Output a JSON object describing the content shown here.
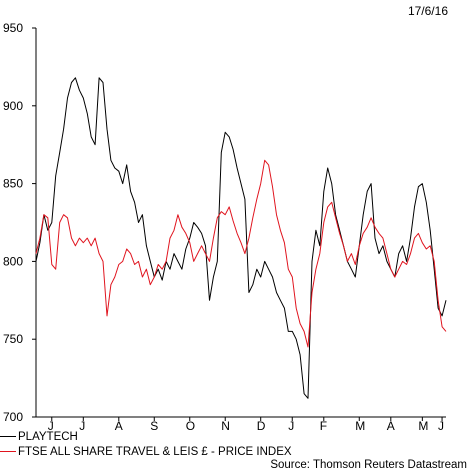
{
  "date_label": "17/6/16",
  "source": "Source: Thomson Reuters Datastream",
  "chart_data": {
    "type": "line",
    "ylim": [
      700,
      950
    ],
    "yticks": [
      700,
      750,
      800,
      850,
      900,
      950
    ],
    "xlim": [
      0,
      52
    ],
    "month_ticks": [
      {
        "label": "J",
        "x": 2
      },
      {
        "label": "J",
        "x": 6
      },
      {
        "label": "A",
        "x": 10.5
      },
      {
        "label": "S",
        "x": 15
      },
      {
        "label": "O",
        "x": 19.5
      },
      {
        "label": "N",
        "x": 24
      },
      {
        "label": "D",
        "x": 28.5
      },
      {
        "label": "J",
        "x": 32.5
      },
      {
        "label": "F",
        "x": 36.5
      },
      {
        "label": "M",
        "x": 41
      },
      {
        "label": "A",
        "x": 45
      },
      {
        "label": "M",
        "x": 49
      },
      {
        "label": "J",
        "x": 51.5
      }
    ],
    "series": [
      {
        "name": "PLAYTECH",
        "color": "#000000",
        "points": [
          [
            0,
            800
          ],
          [
            0.5,
            812
          ],
          [
            1,
            830
          ],
          [
            1.5,
            820
          ],
          [
            2,
            825
          ],
          [
            2.5,
            855
          ],
          [
            3,
            870
          ],
          [
            3.5,
            885
          ],
          [
            4,
            905
          ],
          [
            4.5,
            915
          ],
          [
            5,
            918
          ],
          [
            5.5,
            910
          ],
          [
            6,
            905
          ],
          [
            6.5,
            895
          ],
          [
            7,
            880
          ],
          [
            7.5,
            875
          ],
          [
            8,
            918
          ],
          [
            8.5,
            915
          ],
          [
            9,
            885
          ],
          [
            9.5,
            865
          ],
          [
            10,
            860
          ],
          [
            10.5,
            858
          ],
          [
            11,
            850
          ],
          [
            11.5,
            862
          ],
          [
            12,
            845
          ],
          [
            12.5,
            838
          ],
          [
            13,
            825
          ],
          [
            13.5,
            830
          ],
          [
            14,
            810
          ],
          [
            14.5,
            800
          ],
          [
            15,
            790
          ],
          [
            15.5,
            795
          ],
          [
            16,
            788
          ],
          [
            16.5,
            800
          ],
          [
            17,
            795
          ],
          [
            17.5,
            805
          ],
          [
            18,
            800
          ],
          [
            18.5,
            795
          ],
          [
            19,
            808
          ],
          [
            19.5,
            815
          ],
          [
            20,
            825
          ],
          [
            20.5,
            822
          ],
          [
            21,
            818
          ],
          [
            21.5,
            810
          ],
          [
            22,
            775
          ],
          [
            22.5,
            790
          ],
          [
            23,
            800
          ],
          [
            23.5,
            870
          ],
          [
            24,
            883
          ],
          [
            24.5,
            880
          ],
          [
            25,
            872
          ],
          [
            25.5,
            860
          ],
          [
            26,
            850
          ],
          [
            26.5,
            840
          ],
          [
            27,
            780
          ],
          [
            27.5,
            785
          ],
          [
            28,
            795
          ],
          [
            28.5,
            790
          ],
          [
            29,
            800
          ],
          [
            29.5,
            795
          ],
          [
            30,
            790
          ],
          [
            30.5,
            780
          ],
          [
            31,
            775
          ],
          [
            31.5,
            770
          ],
          [
            32,
            755
          ],
          [
            32.5,
            755
          ],
          [
            33,
            750
          ],
          [
            33.5,
            740
          ],
          [
            34,
            715
          ],
          [
            34.5,
            712
          ],
          [
            35,
            800
          ],
          [
            35.5,
            820
          ],
          [
            36,
            810
          ],
          [
            36.5,
            845
          ],
          [
            37,
            860
          ],
          [
            37.5,
            850
          ],
          [
            38,
            830
          ],
          [
            38.5,
            820
          ],
          [
            39,
            810
          ],
          [
            39.5,
            800
          ],
          [
            40,
            795
          ],
          [
            40.5,
            790
          ],
          [
            41,
            810
          ],
          [
            41.5,
            830
          ],
          [
            42,
            845
          ],
          [
            42.5,
            850
          ],
          [
            43,
            815
          ],
          [
            43.5,
            805
          ],
          [
            44,
            810
          ],
          [
            44.5,
            800
          ],
          [
            45,
            795
          ],
          [
            45.5,
            790
          ],
          [
            46,
            805
          ],
          [
            46.5,
            810
          ],
          [
            47,
            800
          ],
          [
            47.5,
            815
          ],
          [
            48,
            835
          ],
          [
            48.5,
            848
          ],
          [
            49,
            850
          ],
          [
            49.5,
            838
          ],
          [
            50,
            820
          ],
          [
            50.5,
            795
          ],
          [
            51,
            770
          ],
          [
            51.5,
            765
          ],
          [
            52,
            775
          ]
        ]
      },
      {
        "name": "FTSE ALL SHARE TRAVEL & LEIS £ - PRICE INDEX",
        "color": "#e0141e",
        "points": [
          [
            0,
            805
          ],
          [
            0.5,
            815
          ],
          [
            1,
            830
          ],
          [
            1.5,
            828
          ],
          [
            2,
            798
          ],
          [
            2.5,
            795
          ],
          [
            3,
            825
          ],
          [
            3.5,
            830
          ],
          [
            4,
            828
          ],
          [
            4.5,
            815
          ],
          [
            5,
            810
          ],
          [
            5.5,
            815
          ],
          [
            6,
            812
          ],
          [
            6.5,
            815
          ],
          [
            7,
            810
          ],
          [
            7.5,
            815
          ],
          [
            8,
            805
          ],
          [
            8.5,
            800
          ],
          [
            9,
            765
          ],
          [
            9.5,
            785
          ],
          [
            10,
            790
          ],
          [
            10.5,
            798
          ],
          [
            11,
            800
          ],
          [
            11.5,
            808
          ],
          [
            12,
            805
          ],
          [
            12.5,
            798
          ],
          [
            13,
            800
          ],
          [
            13.5,
            790
          ],
          [
            14,
            795
          ],
          [
            14.5,
            785
          ],
          [
            15,
            790
          ],
          [
            15.5,
            798
          ],
          [
            16,
            795
          ],
          [
            16.5,
            800
          ],
          [
            17,
            815
          ],
          [
            17.5,
            820
          ],
          [
            18,
            830
          ],
          [
            18.5,
            822
          ],
          [
            19,
            818
          ],
          [
            19.5,
            812
          ],
          [
            20,
            800
          ],
          [
            20.5,
            805
          ],
          [
            21,
            810
          ],
          [
            21.5,
            805
          ],
          [
            22,
            800
          ],
          [
            22.5,
            815
          ],
          [
            23,
            828
          ],
          [
            23.5,
            832
          ],
          [
            24,
            830
          ],
          [
            24.5,
            835
          ],
          [
            25,
            826
          ],
          [
            25.5,
            818
          ],
          [
            26,
            812
          ],
          [
            26.5,
            805
          ],
          [
            27,
            815
          ],
          [
            27.5,
            828
          ],
          [
            28,
            840
          ],
          [
            28.5,
            850
          ],
          [
            29,
            865
          ],
          [
            29.5,
            862
          ],
          [
            30,
            848
          ],
          [
            30.5,
            830
          ],
          [
            31,
            820
          ],
          [
            31.5,
            812
          ],
          [
            32,
            795
          ],
          [
            32.5,
            790
          ],
          [
            33,
            770
          ],
          [
            33.5,
            760
          ],
          [
            34,
            755
          ],
          [
            34.5,
            745
          ],
          [
            35,
            780
          ],
          [
            35.5,
            795
          ],
          [
            36,
            805
          ],
          [
            36.5,
            825
          ],
          [
            37,
            835
          ],
          [
            37.5,
            838
          ],
          [
            38,
            828
          ],
          [
            38.5,
            818
          ],
          [
            39,
            810
          ],
          [
            39.5,
            800
          ],
          [
            40,
            805
          ],
          [
            40.5,
            798
          ],
          [
            41,
            810
          ],
          [
            41.5,
            818
          ],
          [
            42,
            822
          ],
          [
            42.5,
            828
          ],
          [
            43,
            822
          ],
          [
            43.5,
            818
          ],
          [
            44,
            815
          ],
          [
            44.5,
            805
          ],
          [
            45,
            795
          ],
          [
            45.5,
            790
          ],
          [
            46,
            795
          ],
          [
            46.5,
            800
          ],
          [
            47,
            798
          ],
          [
            47.5,
            805
          ],
          [
            48,
            815
          ],
          [
            48.5,
            818
          ],
          [
            49,
            812
          ],
          [
            49.5,
            808
          ],
          [
            50,
            810
          ],
          [
            50.5,
            800
          ],
          [
            51,
            775
          ],
          [
            51.5,
            758
          ],
          [
            52,
            755
          ]
        ]
      }
    ]
  }
}
